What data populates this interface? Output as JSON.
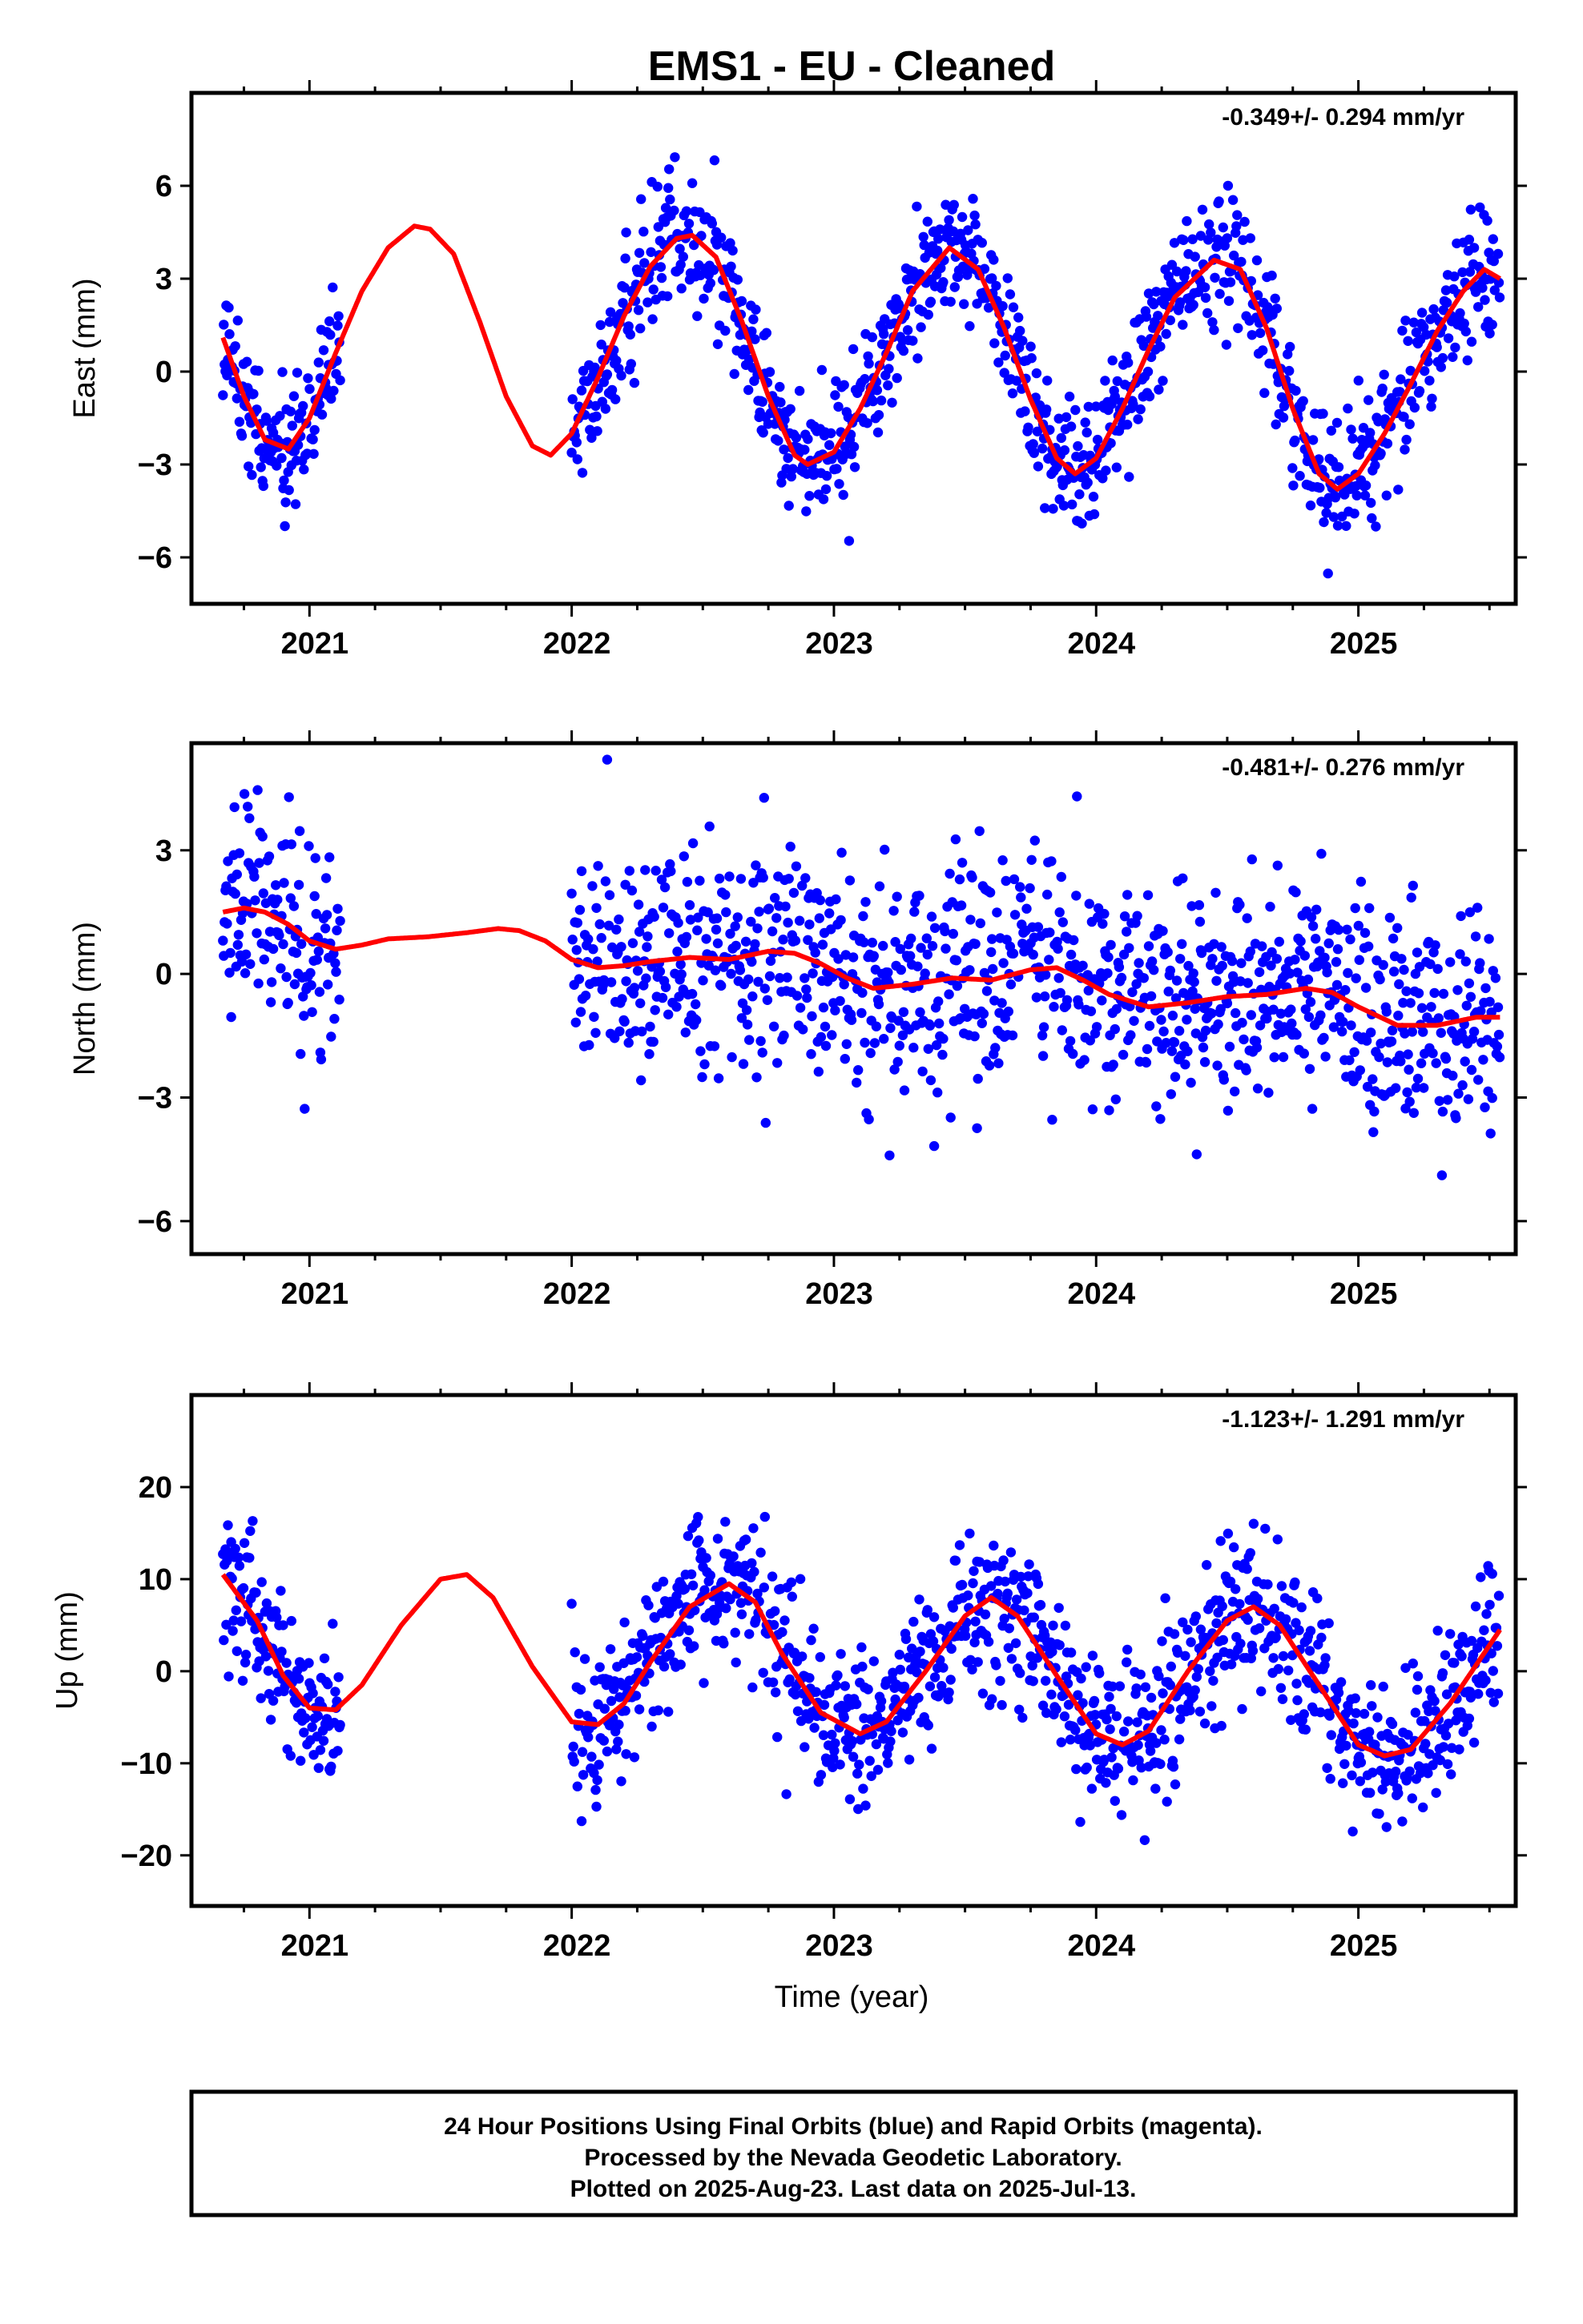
{
  "chart_data": {
    "title": "EMS1  - EU - Cleaned",
    "xlabel": "Time (year)",
    "type": "scatter",
    "point_color": "#0000ff",
    "fit_color": "#ff0000",
    "frame_color": "#000000",
    "panels": [
      {
        "name": "East",
        "ylabel": "East (mm)",
        "rate": "-0.349+/- 0.294 mm/yr",
        "xlim": [
          2020.55,
          2025.6
        ],
        "ylim": [
          -7.5,
          9.0
        ],
        "yticks": [
          -6,
          -3,
          0,
          3,
          6
        ],
        "xticks": [
          2021,
          2022,
          2023,
          2024,
          2025
        ],
        "fit": {
          "x": [
            2020.67,
            2020.75,
            2020.83,
            2020.92,
            2021.0,
            2021.1,
            2021.2,
            2021.3,
            2021.4,
            2021.46,
            2021.55,
            2021.65,
            2021.75,
            2021.85,
            2021.92,
            2022.0,
            2022.1,
            2022.2,
            2022.3,
            2022.4,
            2022.46,
            2022.55,
            2022.65,
            2022.75,
            2022.85,
            2022.9,
            2023.0,
            2023.1,
            2023.2,
            2023.3,
            2023.44,
            2023.55,
            2023.65,
            2023.75,
            2023.85,
            2023.92,
            2024.0,
            2024.1,
            2024.2,
            2024.3,
            2024.45,
            2024.55,
            2024.65,
            2024.75,
            2024.85,
            2024.92,
            2025.0,
            2025.1,
            2025.2,
            2025.3,
            2025.4,
            2025.48,
            2025.54
          ],
          "y": [
            1.1,
            -0.8,
            -2.2,
            -2.5,
            -1.5,
            0.6,
            2.6,
            4.0,
            4.7,
            4.6,
            3.8,
            1.6,
            -0.8,
            -2.4,
            -2.7,
            -2.0,
            -0.2,
            1.8,
            3.4,
            4.3,
            4.4,
            3.7,
            1.6,
            -0.8,
            -2.7,
            -3.0,
            -2.6,
            -1.2,
            0.6,
            2.6,
            4.0,
            3.3,
            1.4,
            -0.9,
            -2.8,
            -3.3,
            -2.8,
            -1.2,
            0.7,
            2.4,
            3.6,
            3.3,
            1.4,
            -1.2,
            -3.3,
            -3.8,
            -3.3,
            -2.0,
            -0.4,
            1.3,
            2.6,
            3.3,
            3.0
          ]
        }
      },
      {
        "name": "North",
        "ylabel": "North (mm)",
        "rate": "-0.481+/- 0.276 mm/yr",
        "xlim": [
          2020.55,
          2025.6
        ],
        "ylim": [
          -6.8,
          5.6
        ],
        "yticks": [
          -6,
          -3,
          0,
          3
        ],
        "xticks": [
          2021,
          2022,
          2023,
          2024,
          2025
        ],
        "fit": {
          "x": [
            2020.67,
            2020.75,
            2020.83,
            2020.92,
            2021.0,
            2021.1,
            2021.2,
            2021.3,
            2021.45,
            2021.6,
            2021.72,
            2021.8,
            2021.9,
            2022.0,
            2022.1,
            2022.2,
            2022.3,
            2022.45,
            2022.6,
            2022.75,
            2022.85,
            2022.95,
            2023.05,
            2023.15,
            2023.3,
            2023.45,
            2023.6,
            2023.75,
            2023.85,
            2023.95,
            2024.05,
            2024.2,
            2024.35,
            2024.5,
            2024.65,
            2024.8,
            2024.9,
            2025.0,
            2025.15,
            2025.3,
            2025.45,
            2025.54
          ],
          "y": [
            1.5,
            1.6,
            1.5,
            1.2,
            0.8,
            0.6,
            0.7,
            0.85,
            0.9,
            1.0,
            1.1,
            1.05,
            0.8,
            0.35,
            0.15,
            0.2,
            0.3,
            0.4,
            0.35,
            0.55,
            0.5,
            0.25,
            -0.1,
            -0.35,
            -0.25,
            -0.1,
            -0.15,
            0.1,
            0.15,
            -0.15,
            -0.5,
            -0.8,
            -0.7,
            -0.55,
            -0.5,
            -0.35,
            -0.45,
            -0.8,
            -1.25,
            -1.25,
            -1.05,
            -1.05
          ]
        }
      },
      {
        "name": "Up",
        "ylabel": "Up (mm)",
        "rate": "-1.123+/- 1.291 mm/yr",
        "xlim": [
          2020.55,
          2025.6
        ],
        "ylim": [
          -25.5,
          30.0
        ],
        "yticks": [
          -20,
          -10,
          0,
          10,
          20
        ],
        "xticks": [
          2021,
          2022,
          2023,
          2024,
          2025
        ],
        "fit": {
          "x": [
            2020.67,
            2020.8,
            2020.9,
            2021.0,
            2021.1,
            2021.2,
            2021.35,
            2021.5,
            2021.6,
            2021.7,
            2021.85,
            2022.0,
            2022.1,
            2022.2,
            2022.3,
            2022.45,
            2022.6,
            2022.7,
            2022.8,
            2022.95,
            2023.1,
            2023.2,
            2023.35,
            2023.5,
            2023.6,
            2023.7,
            2023.85,
            2024.0,
            2024.1,
            2024.2,
            2024.35,
            2024.5,
            2024.6,
            2024.7,
            2024.85,
            2025.0,
            2025.1,
            2025.2,
            2025.35,
            2025.54
          ],
          "y": [
            10.5,
            5.5,
            -0.5,
            -4.0,
            -4.2,
            -1.5,
            5.0,
            10.0,
            10.5,
            8.0,
            0.5,
            -5.5,
            -5.8,
            -3.5,
            1.0,
            7.0,
            9.5,
            7.5,
            2.0,
            -4.5,
            -6.8,
            -5.5,
            0.0,
            6.0,
            8.0,
            6.0,
            -0.5,
            -6.8,
            -8.0,
            -6.5,
            0.0,
            5.5,
            7.0,
            5.0,
            -1.5,
            -8.0,
            -9.2,
            -8.5,
            -3.5,
            4.5
          ]
        }
      }
    ]
  },
  "footer": {
    "line1": "24 Hour Positions Using Final Orbits (blue) and Rapid Orbits (magenta).",
    "line2": "Processed by the Nevada Geodetic Laboratory.",
    "line3": "Plotted on 2025-Aug-23. Last data on 2025-Jul-13."
  }
}
